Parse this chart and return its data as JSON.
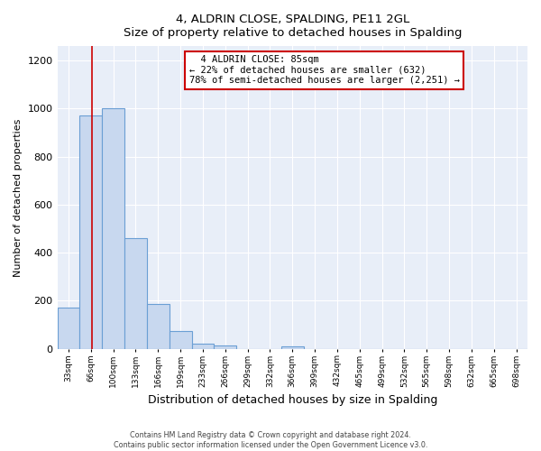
{
  "title": "4, ALDRIN CLOSE, SPALDING, PE11 2GL",
  "subtitle": "Size of property relative to detached houses in Spalding",
  "xlabel": "Distribution of detached houses by size in Spalding",
  "ylabel": "Number of detached properties",
  "bar_color": "#c8d8ef",
  "bar_edge_color": "#6b9fd4",
  "plot_bg_color": "#e8eef8",
  "fig_bg_color": "#ffffff",
  "grid_color": "#ffffff",
  "categories": [
    "33sqm",
    "66sqm",
    "100sqm",
    "133sqm",
    "166sqm",
    "199sqm",
    "233sqm",
    "266sqm",
    "299sqm",
    "332sqm",
    "366sqm",
    "399sqm",
    "432sqm",
    "465sqm",
    "499sqm",
    "532sqm",
    "565sqm",
    "598sqm",
    "632sqm",
    "665sqm",
    "698sqm"
  ],
  "values": [
    170,
    970,
    1000,
    462,
    185,
    75,
    22,
    15,
    0,
    0,
    10,
    0,
    0,
    0,
    0,
    0,
    0,
    0,
    0,
    0,
    0
  ],
  "ylim": [
    0,
    1260
  ],
  "yticks": [
    0,
    200,
    400,
    600,
    800,
    1000,
    1200
  ],
  "property_label": "4 ALDRIN CLOSE: 85sqm",
  "annotation_line1": "← 22% of detached houses are smaller (632)",
  "annotation_line2": "78% of semi-detached houses are larger (2,251) →",
  "red_line_color": "#cc0000",
  "footnote1": "Contains HM Land Registry data © Crown copyright and database right 2024.",
  "footnote2": "Contains public sector information licensed under the Open Government Licence v3.0."
}
